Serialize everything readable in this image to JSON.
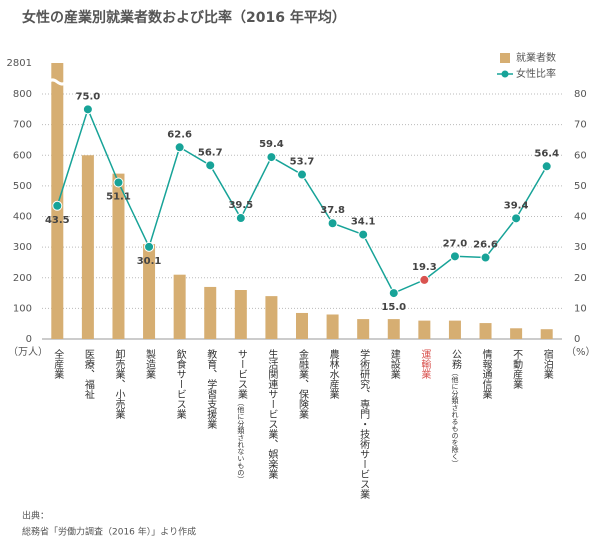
{
  "chart_data": {
    "type": "bar+line",
    "title": "女性の産業別就業者数および比率（2016 年平均）",
    "categories": [
      "全産業",
      "医療、福祉",
      "卸売業、小売業",
      "製造業",
      "飲食サービス業",
      "教育、学習支援業",
      "サービス業",
      "生活関連サービス業、娯楽業",
      "金融業、保険業",
      "農林水産業",
      "学術研究、専門・技術サービス業",
      "建設業",
      "運輸業",
      "公務",
      "情報通信業",
      "不動産業",
      "宿泊業"
    ],
    "category_notes": [
      null,
      null,
      null,
      null,
      null,
      null,
      "（他に分類されないもの）",
      null,
      null,
      null,
      null,
      null,
      null,
      "（他に分類されるものを除く）",
      null,
      null,
      null
    ],
    "series": [
      {
        "name": "就業者数",
        "color": "#d6ae72",
        "values": [
          2801,
          600,
          540,
          310,
          210,
          170,
          160,
          140,
          85,
          80,
          65,
          65,
          60,
          60,
          52,
          35,
          32
        ]
      },
      {
        "name": "女性比率",
        "color": "#17a398",
        "axis": "y2",
        "values": [
          43.5,
          75.0,
          51.1,
          30.1,
          62.6,
          56.7,
          39.5,
          59.4,
          53.7,
          37.8,
          34.1,
          15.0,
          19.3,
          27.0,
          26.6,
          39.4,
          56.4
        ],
        "value_labels": [
          "43.5",
          "75.0",
          "51.1",
          "30.1",
          "62.6",
          "56.7",
          "39.5",
          "59.4",
          "53.7",
          "37.8",
          "34.1",
          "15.0",
          "19.3",
          "27.0",
          "26.6",
          "39.4",
          "56.4"
        ]
      }
    ],
    "highlight": {
      "index": 12,
      "color": "#d9534f"
    },
    "ylim": [
      0,
      2801
    ],
    "yticks": [
      0,
      100,
      200,
      300,
      400,
      500,
      600,
      700,
      800,
      2801
    ],
    "y2lim": [
      0,
      80
    ],
    "y2ticks": [
      0,
      10,
      20,
      30,
      40,
      50,
      60,
      70,
      80
    ],
    "ylabel": "（万人）",
    "y2label": "（%）",
    "grid": true,
    "legend": "upper right",
    "source_title": "出典：",
    "source": "総務省「労働力調査（2016 年）」より作成"
  }
}
